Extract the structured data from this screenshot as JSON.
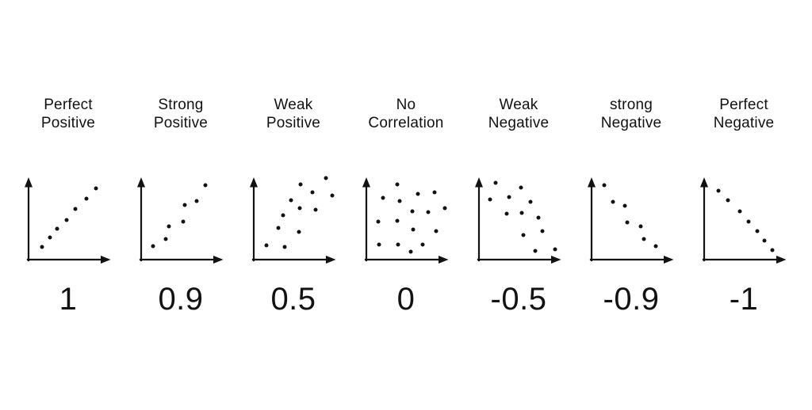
{
  "colors": {
    "background": "#ffffff",
    "ink": "#121212"
  },
  "chart_meta": {
    "panel_count": 7,
    "axis_style": "bare arrow axes, no ticks, no tick labels, no titles",
    "grid": false,
    "legend": false,
    "x_range": [
      0,
      100
    ],
    "y_range": [
      0,
      100
    ]
  },
  "chart_data": [
    {
      "type": "scatter",
      "label_lines": [
        "Perfect",
        "Positive"
      ],
      "coefficient": "1",
      "points": [
        [
          17,
          16
        ],
        [
          27,
          28
        ],
        [
          36,
          39
        ],
        [
          48,
          50
        ],
        [
          59,
          64
        ],
        [
          73,
          77
        ],
        [
          85,
          90
        ]
      ]
    },
    {
      "type": "scatter",
      "label_lines": [
        "Strong",
        "Positive"
      ],
      "coefficient": "0.9",
      "points": [
        [
          15,
          17
        ],
        [
          31,
          26
        ],
        [
          35,
          42
        ],
        [
          53,
          48
        ],
        [
          55,
          69
        ],
        [
          70,
          74
        ],
        [
          81,
          94
        ]
      ]
    },
    {
      "type": "scatter",
      "label_lines": [
        "Weak",
        "Positive"
      ],
      "coefficient": "0.5",
      "points": [
        [
          16,
          18
        ],
        [
          31,
          40
        ],
        [
          37,
          56
        ],
        [
          39,
          16
        ],
        [
          47,
          75
        ],
        [
          58,
          65
        ],
        [
          59,
          95
        ],
        [
          57,
          35
        ],
        [
          74,
          85
        ],
        [
          78,
          63
        ],
        [
          91,
          103
        ],
        [
          99,
          81
        ]
      ]
    },
    {
      "type": "scatter",
      "label_lines": [
        "No",
        "Correlation"
      ],
      "coefficient": "0",
      "points": [
        [
          39,
          95
        ],
        [
          21,
          78
        ],
        [
          42,
          74
        ],
        [
          65,
          83
        ],
        [
          86,
          85
        ],
        [
          58,
          61
        ],
        [
          78,
          60
        ],
        [
          99,
          65
        ],
        [
          15,
          48
        ],
        [
          39,
          49
        ],
        [
          59,
          38
        ],
        [
          88,
          36
        ],
        [
          16,
          19
        ],
        [
          40,
          19
        ],
        [
          71,
          19
        ],
        [
          56,
          10
        ]
      ]
    },
    {
      "type": "scatter",
      "label_lines": [
        "Weak",
        "Negative"
      ],
      "coefficient": "-0.5",
      "points": [
        [
          21,
          97
        ],
        [
          14,
          76
        ],
        [
          38,
          79
        ],
        [
          53,
          91
        ],
        [
          35,
          58
        ],
        [
          54,
          59
        ],
        [
          65,
          73
        ],
        [
          75,
          53
        ],
        [
          80,
          36
        ],
        [
          56,
          31
        ],
        [
          71,
          11
        ],
        [
          96,
          13
        ]
      ]
    },
    {
      "type": "scatter",
      "label_lines": [
        "strong",
        "Negative"
      ],
      "coefficient": "-0.9",
      "points": [
        [
          16,
          94
        ],
        [
          27,
          73
        ],
        [
          42,
          68
        ],
        [
          45,
          47
        ],
        [
          62,
          42
        ],
        [
          66,
          26
        ],
        [
          81,
          17
        ]
      ]
    },
    {
      "type": "scatter",
      "label_lines": [
        "Perfect",
        "Negative"
      ],
      "coefficient": "-1",
      "points": [
        [
          18,
          87
        ],
        [
          30,
          75
        ],
        [
          45,
          61
        ],
        [
          56,
          48
        ],
        [
          67,
          36
        ],
        [
          76,
          24
        ],
        [
          86,
          12
        ]
      ]
    }
  ]
}
